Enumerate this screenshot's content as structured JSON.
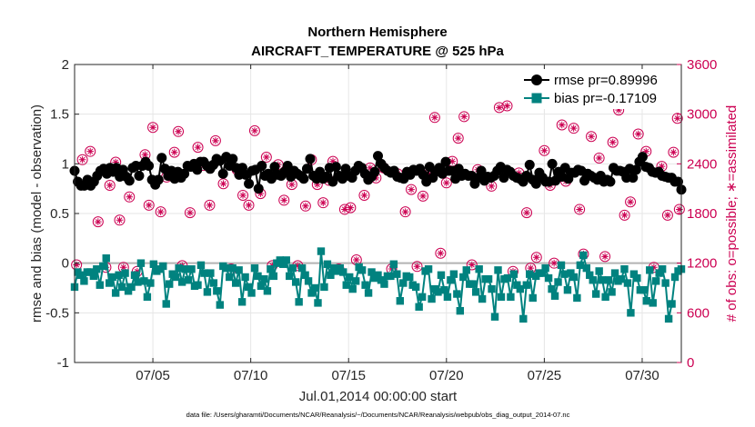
{
  "chart_data": {
    "type": "line",
    "title": "Northern Hemisphere",
    "subtitle": "AIRCRAFT_TEMPERATURE @ 525 hPa",
    "xlabel": "Jul.01,2014 00:00:00 start",
    "ylabel": "rmse and bias (model - observation)",
    "y2label": "# of obs: o=possible; ∗=assimilated",
    "footnote": "data file: /Users/gharamti/Documents/NCAR/Reanalysis/~/Documents/NCAR/Reanalysis/webpub/obs_diag_output_2014-07.nc",
    "xlim": [
      1.0,
      32.0
    ],
    "ylim": [
      -1,
      2
    ],
    "y2lim": [
      0,
      3600
    ],
    "xticks": [
      5,
      10,
      15,
      20,
      25,
      30
    ],
    "xticklabels": [
      "07/05",
      "07/10",
      "07/15",
      "07/20",
      "07/25",
      "07/30"
    ],
    "yticks": [
      -1,
      -0.5,
      0,
      0.5,
      1,
      1.5,
      2
    ],
    "yticklabels": [
      "-1",
      "-0.5",
      "0",
      "0.5",
      "1",
      "1.5",
      "2"
    ],
    "y2ticks": [
      0,
      600,
      1200,
      1800,
      2400,
      3000,
      3600
    ],
    "y2ticklabels": [
      "0",
      "600",
      "1200",
      "1800",
      "2400",
      "3000",
      "3600"
    ],
    "grid": true,
    "legend_position": "top-right",
    "colors": {
      "rmse": "#000000",
      "bias": "#00827f",
      "obs": "#cc0052",
      "zero_line": "#b3b3b3"
    },
    "series": [
      {
        "name": "rmse",
        "legend": "rmse pr=0.89996",
        "marker": "circle",
        "values": [
          0.93,
          0.82,
          0.78,
          0.78,
          0.84,
          0.78,
          0.82,
          0.88,
          0.93,
          0.95,
          0.9,
          0.96,
          0.92,
          0.96,
          0.87,
          0.94,
          0.87,
          0.83,
          0.96,
          0.98,
          0.88,
          0.98,
          1.02,
          0.98,
          0.84,
          0.79,
          0.84,
          1.06,
          0.95,
          0.88,
          0.93,
          0.85,
          0.92,
          0.86,
          0.9,
          0.98,
          0.97,
          1.0,
          0.94,
          1.02,
          1.02,
          0.98,
          0.95,
          0.99,
          1.05,
          1.03,
          0.9,
          1.07,
          0.98,
          1.05,
          0.96,
          0.89,
          0.96,
          0.89,
          0.8,
          0.93,
          0.94,
          0.75,
          0.98,
          0.88,
          0.9,
          0.85,
          0.97,
          0.89,
          0.88,
          0.92,
          0.98,
          0.87,
          0.93,
          0.9,
          0.88,
          0.85,
          0.95,
          1.05,
          0.88,
          0.85,
          0.92,
          0.85,
          0.87,
          0.96,
          0.82,
          0.97,
          0.88,
          0.85,
          0.95,
          0.88,
          0.86,
          0.93,
          0.98,
          0.96,
          0.9,
          0.84,
          0.87,
          0.92,
          1.08,
          1.0,
          0.96,
          0.93,
          0.91,
          0.93,
          0.87,
          0.86,
          0.85,
          0.92,
          0.89,
          0.94,
          0.93,
          0.95,
          0.89,
          0.82,
          0.97,
          0.86,
          0.92,
          0.96,
          0.9,
          1.02,
          0.93,
          0.93,
          0.85,
          0.95,
          0.88,
          0.9,
          0.88,
          0.88,
          0.8,
          0.86,
          0.93,
          0.83,
          0.87,
          0.86,
          0.88,
          0.93,
          0.97,
          0.86,
          0.94,
          0.92,
          0.88,
          0.86,
          0.85,
          0.82,
          0.88,
          0.99,
          0.84,
          0.8,
          0.91,
          0.86,
          0.82,
          0.82,
          1.0,
          0.83,
          0.92,
          0.87,
          0.96,
          0.85,
          0.91,
          0.91,
          0.94,
          0.93,
          0.83,
          0.9,
          0.88,
          0.86,
          0.84,
          0.88,
          0.82,
          0.84,
          0.82,
          0.96,
          0.93,
          0.93,
          0.92,
          0.86,
          0.95,
          0.86,
          0.94,
          1.02,
          1.07,
          0.97,
          0.96,
          0.92,
          0.91,
          0.92,
          0.88,
          0.87,
          0.86,
          0.86,
          0.82,
          0.82,
          0.74
        ]
      },
      {
        "name": "bias",
        "legend": "bias pr=-0.17109",
        "marker": "square",
        "values": [
          -0.24,
          -0.09,
          -0.12,
          -0.18,
          -0.09,
          -0.09,
          -0.13,
          -0.06,
          -0.22,
          -0.03,
          0.05,
          -0.2,
          -0.14,
          -0.3,
          -0.12,
          -0.24,
          -0.1,
          -0.28,
          -0.24,
          -0.12,
          -0.19,
          0.0,
          -0.18,
          -0.34,
          -0.2,
          -0.01,
          -0.08,
          -0.06,
          -0.03,
          -0.41,
          -0.21,
          -0.11,
          -0.14,
          -0.05,
          -0.19,
          -0.06,
          -0.17,
          -0.06,
          -0.23,
          -0.22,
          -0.02,
          -0.1,
          -0.29,
          -0.1,
          -0.2,
          -0.28,
          -0.42,
          -0.03,
          -0.05,
          -0.14,
          -0.05,
          -0.2,
          -0.07,
          -0.39,
          -0.14,
          -0.24,
          -0.3,
          -0.05,
          -0.13,
          -0.23,
          -0.16,
          -0.28,
          -0.06,
          -0.13,
          0.0,
          0.03,
          -0.01,
          0.03,
          -0.13,
          -0.05,
          -0.19,
          -0.39,
          -0.05,
          -0.12,
          -0.18,
          -0.3,
          -0.25,
          -0.4,
          0.12,
          -0.24,
          -0.01,
          -0.12,
          -0.05,
          -0.08,
          -0.05,
          -0.09,
          -0.22,
          -0.14,
          -0.26,
          -0.18,
          -0.04,
          -0.07,
          -0.22,
          -0.3,
          -0.09,
          -0.15,
          -0.12,
          -0.17,
          -0.21,
          -0.13,
          -0.13,
          -0.01,
          -0.11,
          -0.38,
          -0.2,
          -0.13,
          -0.14,
          -0.22,
          -0.24,
          -0.44,
          -0.34,
          -0.08,
          -0.06,
          -0.36,
          -0.26,
          -0.29,
          -0.12,
          -0.27,
          -0.34,
          -0.17,
          -0.11,
          -0.31,
          -0.48,
          -0.14,
          -0.07,
          -0.21,
          -0.21,
          -0.29,
          -0.06,
          -0.36,
          -0.16,
          -0.16,
          -0.26,
          -0.54,
          -0.07,
          -0.34,
          -0.16,
          -0.15,
          -0.34,
          -0.11,
          -0.22,
          -0.26,
          -0.56,
          -0.22,
          -0.11,
          -0.35,
          -0.13,
          -0.1,
          -0.1,
          -0.05,
          -0.15,
          -0.26,
          -0.33,
          -0.19,
          -0.02,
          -0.11,
          -0.27,
          -0.1,
          -0.14,
          -0.35,
          -0.02,
          0.08,
          -0.05,
          -0.12,
          -0.17,
          -0.31,
          -0.08,
          -0.17,
          -0.34,
          -0.17,
          -0.29,
          -0.1,
          -0.18,
          -0.16,
          -0.06,
          -0.2,
          -0.5,
          -0.11,
          -0.15,
          -0.27,
          -0.27,
          -0.38,
          -0.07,
          -0.4,
          -0.18,
          -0.1,
          -0.06,
          -0.2,
          -0.56,
          -0.41,
          -0.14,
          -0.08,
          -0.06
        ]
      }
    ],
    "obs_counts": [
      {
        "x": 1.1,
        "v": 1180
      },
      {
        "x": 1.4,
        "v": 2450
      },
      {
        "x": 1.8,
        "v": 2550
      },
      {
        "x": 2.2,
        "v": 1700
      },
      {
        "x": 2.6,
        "v": 1150
      },
      {
        "x": 2.8,
        "v": 2140
      },
      {
        "x": 3.1,
        "v": 2420
      },
      {
        "x": 3.3,
        "v": 1720
      },
      {
        "x": 3.5,
        "v": 1150
      },
      {
        "x": 3.8,
        "v": 2000
      },
      {
        "x": 4.2,
        "v": 1100
      },
      {
        "x": 4.6,
        "v": 2510
      },
      {
        "x": 4.8,
        "v": 1900
      },
      {
        "x": 5.0,
        "v": 2840
      },
      {
        "x": 5.4,
        "v": 1820
      },
      {
        "x": 5.7,
        "v": 2240
      },
      {
        "x": 6.1,
        "v": 2540
      },
      {
        "x": 6.3,
        "v": 2790
      },
      {
        "x": 6.5,
        "v": 1170
      },
      {
        "x": 6.9,
        "v": 1810
      },
      {
        "x": 7.3,
        "v": 2600
      },
      {
        "x": 7.6,
        "v": 2380
      },
      {
        "x": 7.9,
        "v": 1900
      },
      {
        "x": 8.2,
        "v": 2680
      },
      {
        "x": 8.6,
        "v": 2160
      },
      {
        "x": 9.0,
        "v": 1130
      },
      {
        "x": 9.3,
        "v": 2330
      },
      {
        "x": 9.6,
        "v": 2020
      },
      {
        "x": 9.9,
        "v": 1900
      },
      {
        "x": 10.2,
        "v": 2800
      },
      {
        "x": 10.5,
        "v": 2040
      },
      {
        "x": 10.8,
        "v": 2480
      },
      {
        "x": 11.1,
        "v": 1170
      },
      {
        "x": 11.4,
        "v": 2390
      },
      {
        "x": 11.7,
        "v": 1960
      },
      {
        "x": 12.1,
        "v": 2150
      },
      {
        "x": 12.4,
        "v": 1170
      },
      {
        "x": 12.8,
        "v": 1890
      },
      {
        "x": 13.1,
        "v": 2450
      },
      {
        "x": 13.4,
        "v": 2150
      },
      {
        "x": 13.7,
        "v": 1930
      },
      {
        "x": 14.0,
        "v": 2200
      },
      {
        "x": 14.2,
        "v": 2430
      },
      {
        "x": 14.5,
        "v": 1130
      },
      {
        "x": 14.8,
        "v": 1850
      },
      {
        "x": 15.1,
        "v": 1870
      },
      {
        "x": 15.4,
        "v": 1240
      },
      {
        "x": 15.8,
        "v": 2020
      },
      {
        "x": 16.1,
        "v": 2350
      },
      {
        "x": 16.4,
        "v": 2230
      },
      {
        "x": 16.8,
        "v": 2350
      },
      {
        "x": 17.2,
        "v": 1130
      },
      {
        "x": 17.5,
        "v": 2280
      },
      {
        "x": 17.9,
        "v": 1820
      },
      {
        "x": 18.2,
        "v": 2090
      },
      {
        "x": 18.5,
        "v": 1160
      },
      {
        "x": 18.8,
        "v": 2010
      },
      {
        "x": 19.1,
        "v": 2280
      },
      {
        "x": 19.4,
        "v": 2960
      },
      {
        "x": 19.7,
        "v": 1320
      },
      {
        "x": 20.0,
        "v": 2170
      },
      {
        "x": 20.3,
        "v": 2430
      },
      {
        "x": 20.6,
        "v": 2710
      },
      {
        "x": 20.9,
        "v": 2970
      },
      {
        "x": 21.3,
        "v": 1180
      },
      {
        "x": 21.6,
        "v": 2330
      },
      {
        "x": 22.0,
        "v": 2230
      },
      {
        "x": 22.3,
        "v": 2130
      },
      {
        "x": 22.7,
        "v": 3080
      },
      {
        "x": 23.1,
        "v": 3100
      },
      {
        "x": 23.4,
        "v": 1100
      },
      {
        "x": 23.7,
        "v": 2290
      },
      {
        "x": 24.1,
        "v": 1810
      },
      {
        "x": 24.3,
        "v": 1140
      },
      {
        "x": 24.6,
        "v": 1270
      },
      {
        "x": 25.0,
        "v": 2560
      },
      {
        "x": 25.3,
        "v": 2140
      },
      {
        "x": 25.5,
        "v": 1200
      },
      {
        "x": 25.9,
        "v": 2870
      },
      {
        "x": 26.1,
        "v": 2190
      },
      {
        "x": 26.5,
        "v": 2830
      },
      {
        "x": 26.8,
        "v": 1850
      },
      {
        "x": 27.0,
        "v": 1310
      },
      {
        "x": 27.4,
        "v": 2730
      },
      {
        "x": 27.8,
        "v": 2470
      },
      {
        "x": 28.1,
        "v": 1280
      },
      {
        "x": 28.5,
        "v": 2660
      },
      {
        "x": 28.8,
        "v": 3050
      },
      {
        "x": 29.1,
        "v": 1780
      },
      {
        "x": 29.4,
        "v": 1940
      },
      {
        "x": 29.8,
        "v": 2760
      },
      {
        "x": 30.2,
        "v": 2550
      },
      {
        "x": 30.6,
        "v": 1150
      },
      {
        "x": 31.0,
        "v": 2370
      },
      {
        "x": 31.3,
        "v": 1780
      },
      {
        "x": 31.6,
        "v": 2540
      },
      {
        "x": 31.8,
        "v": 2950
      },
      {
        "x": 31.9,
        "v": 1850
      }
    ]
  }
}
